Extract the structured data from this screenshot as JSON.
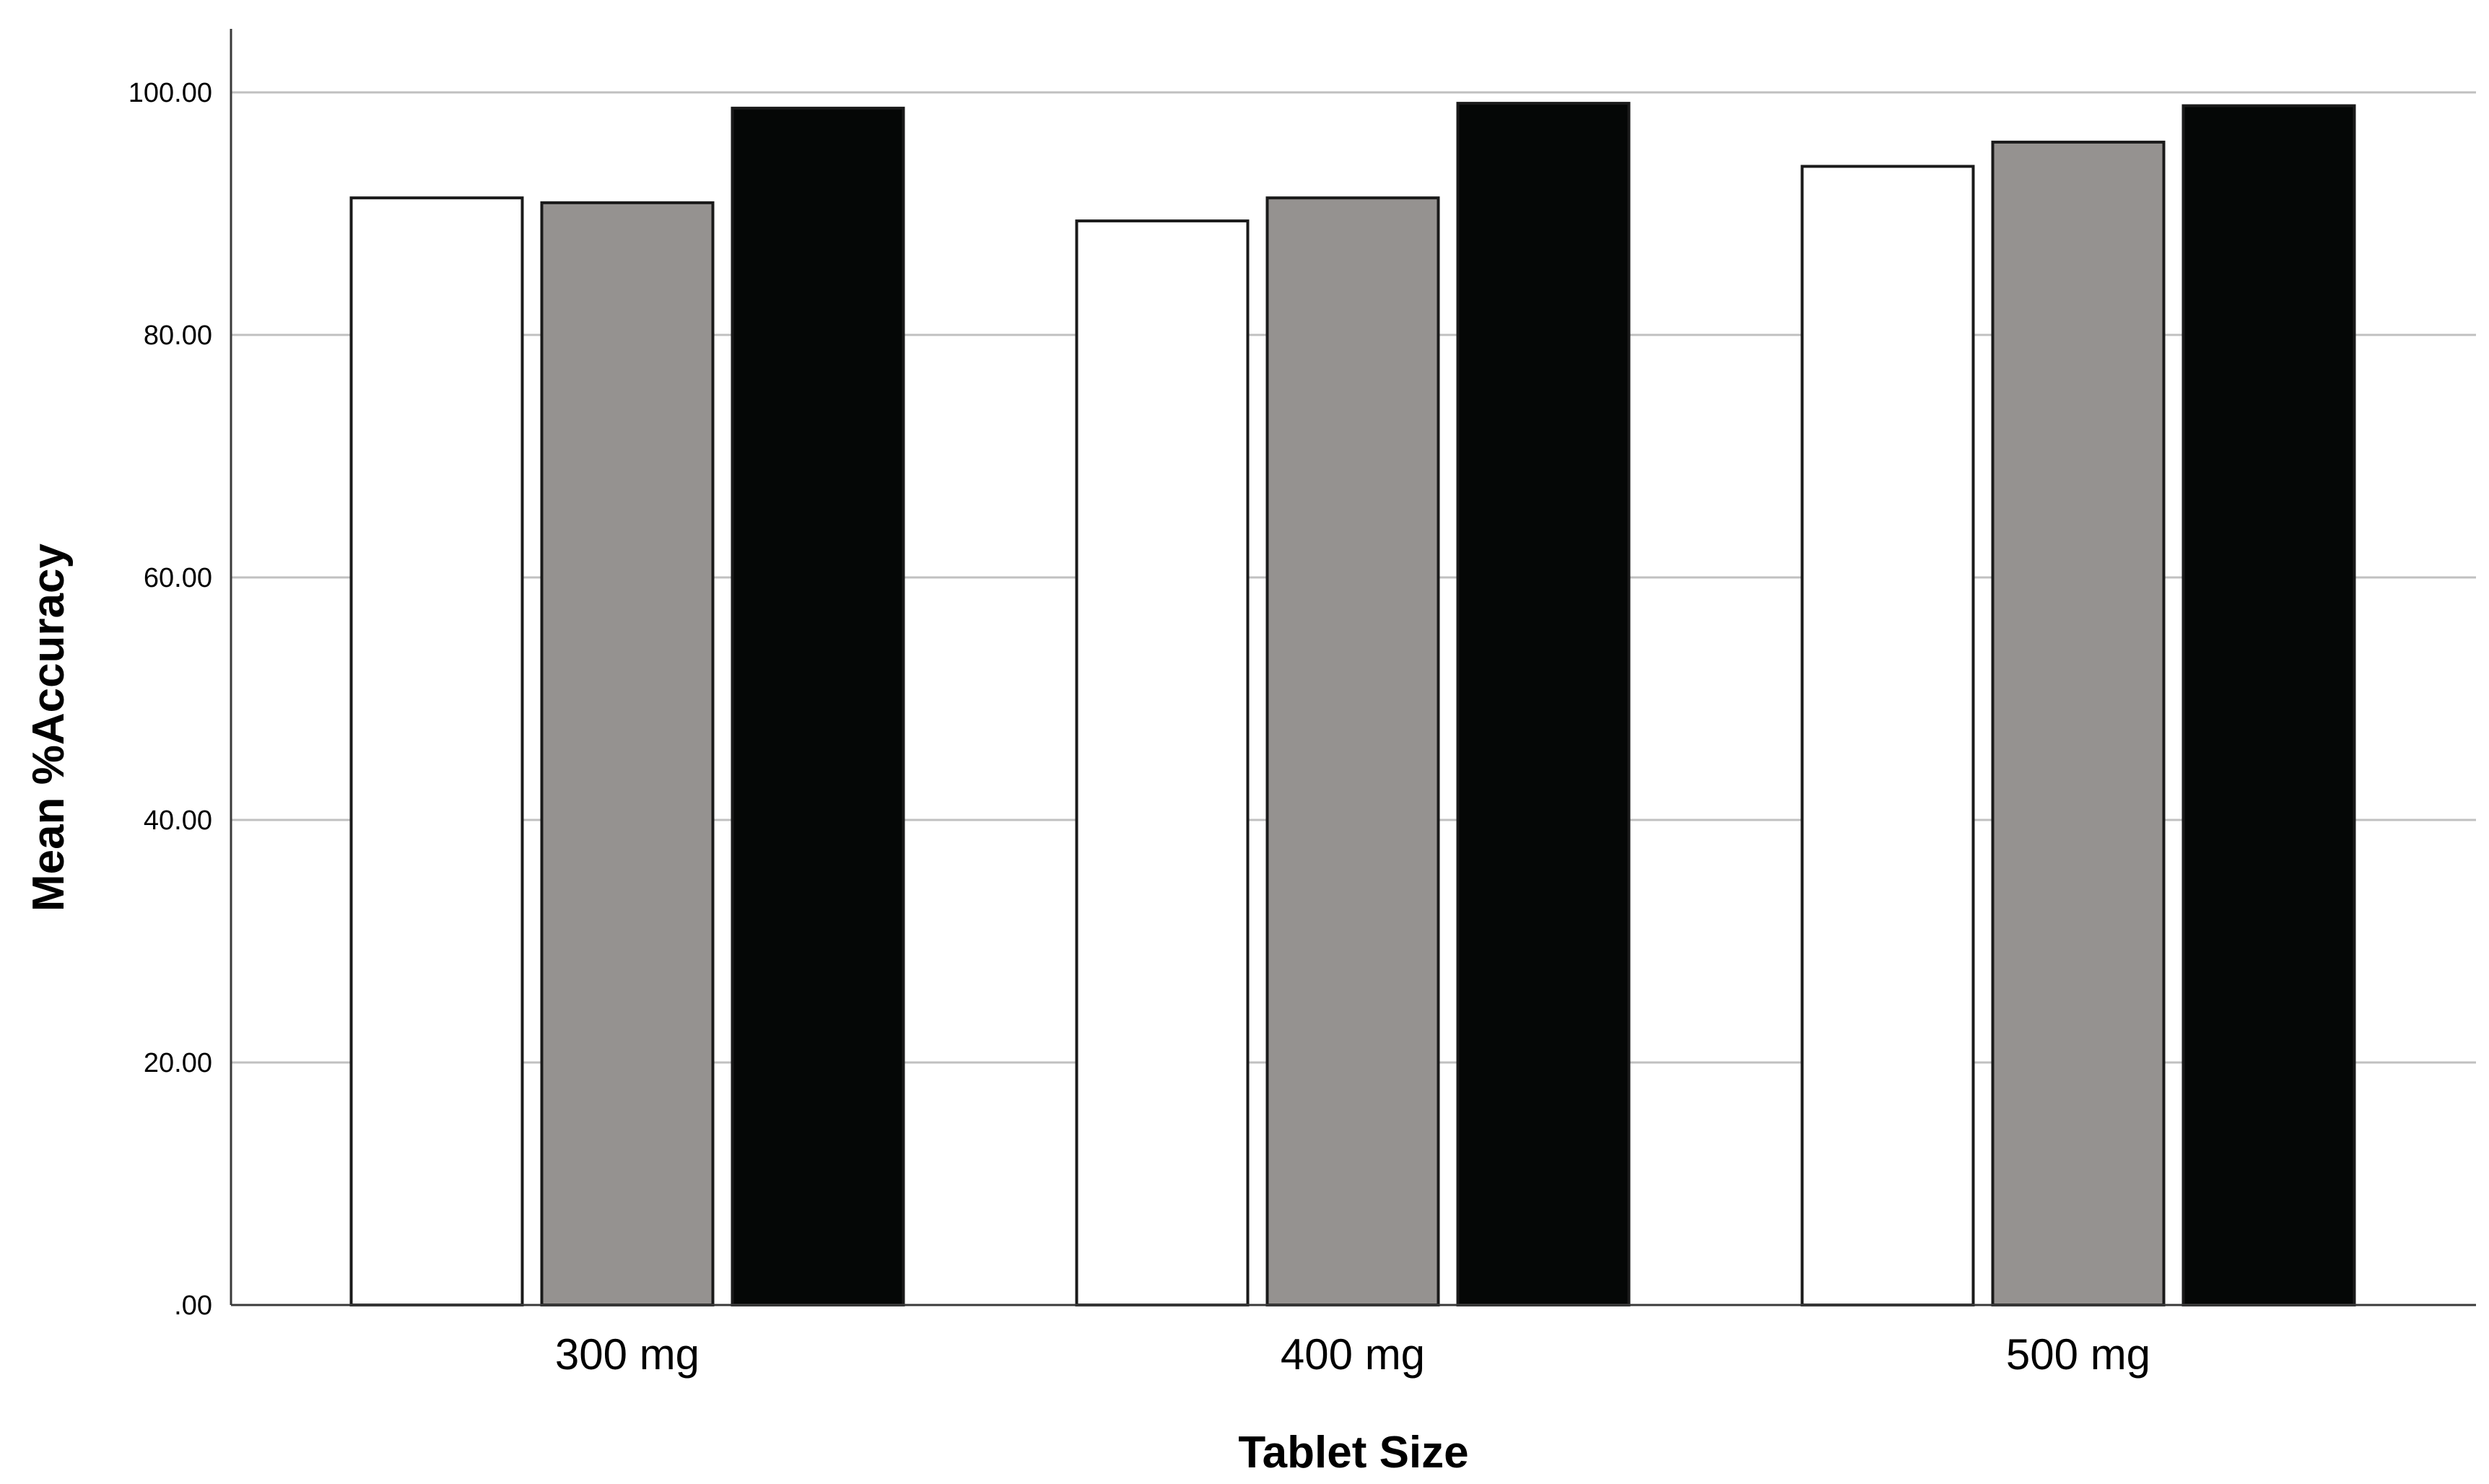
{
  "chart_data": {
    "type": "bar",
    "title": "",
    "xlabel": "Tablet Size",
    "ylabel": "Mean %Accuracy",
    "categories": [
      "300 mg",
      "400 mg",
      "500 mg"
    ],
    "series": [
      {
        "color": "#ffffff",
        "values": [
          91.3,
          89.4,
          93.9
        ]
      },
      {
        "color": "#959290",
        "values": [
          90.9,
          91.3,
          95.9
        ]
      },
      {
        "color": "#050706",
        "values": [
          98.7,
          99.1,
          98.9
        ]
      }
    ],
    "ylim": [
      0,
      100
    ],
    "yticks": [
      0,
      20,
      40,
      60,
      80,
      100
    ],
    "ytick_labels": [
      ".00",
      "20.00",
      "40.00",
      "60.00",
      "80.00",
      "100.00"
    ],
    "grid": "horizontal",
    "legend": "none",
    "gridline_color": "#c0c0c0",
    "bar_edge_color": "#1a1a1a"
  }
}
